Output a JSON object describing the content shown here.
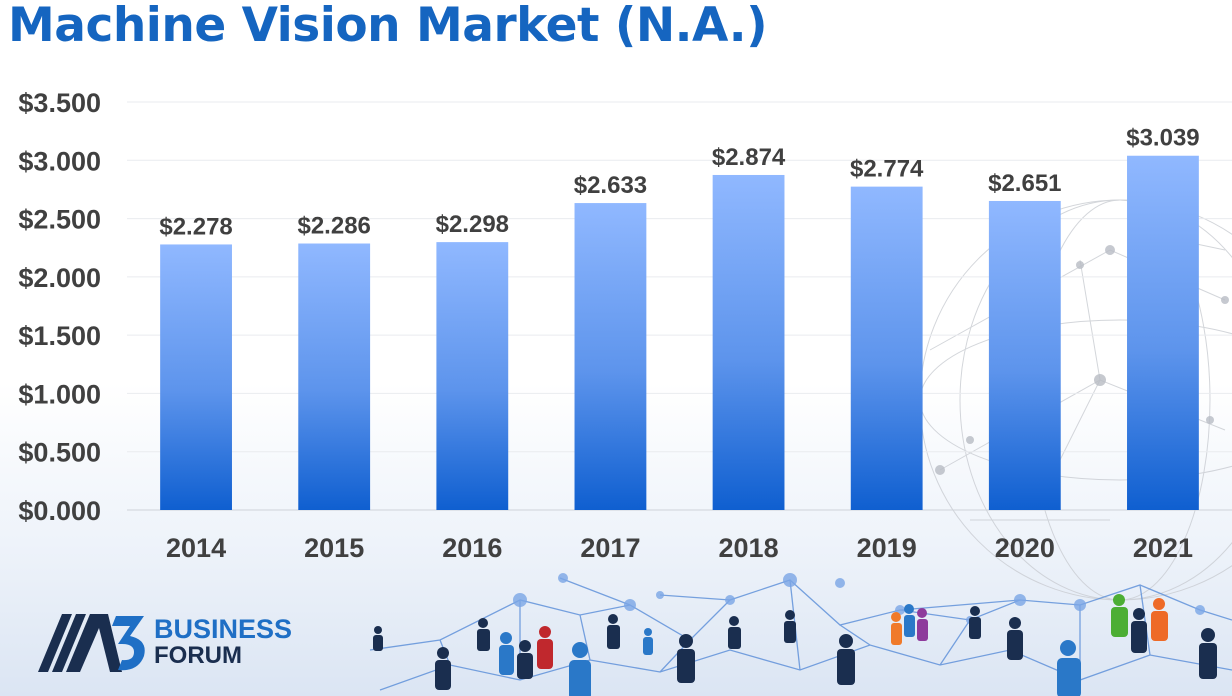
{
  "title": "Machine Vision Market (N.A.)",
  "colors": {
    "title": "#1565c0",
    "bar_top": "#90b8ff",
    "bar_bottom": "#0f5fd0",
    "label_text": "#404040",
    "logo_blue": "#1f6fc5",
    "logo_dark": "#1a2e4f"
  },
  "chart_data": {
    "type": "bar",
    "title": "Machine Vision Market (N.A.)",
    "categories": [
      "2014",
      "2015",
      "2016",
      "2017",
      "2018",
      "2019",
      "2020",
      "2021"
    ],
    "values": [
      2.278,
      2.286,
      2.298,
      2.633,
      2.874,
      2.774,
      2.651,
      3.039
    ],
    "data_labels": [
      "$2.278",
      "$2.286",
      "$2.298",
      "$2.633",
      "$2.874",
      "$2.774",
      "$2.651",
      "$3.039"
    ],
    "ylim": [
      0,
      3.5
    ],
    "yticks": [
      0,
      0.5,
      1,
      1.5,
      2,
      2.5,
      3,
      3.5
    ],
    "ytick_labels": [
      "$0.000",
      "$0.500",
      "$1.000",
      "$1.500",
      "$2.000",
      "$2.500",
      "$3.000",
      "$3.500"
    ],
    "grid": true,
    "legend": "none"
  },
  "logo": {
    "line1": "BUSINESS",
    "line2": "FORUM",
    "mark_icon": "a3-logo-icon"
  },
  "decor": {
    "network_icon": "network-globe-icon",
    "people_icon": "people-network-icon"
  }
}
